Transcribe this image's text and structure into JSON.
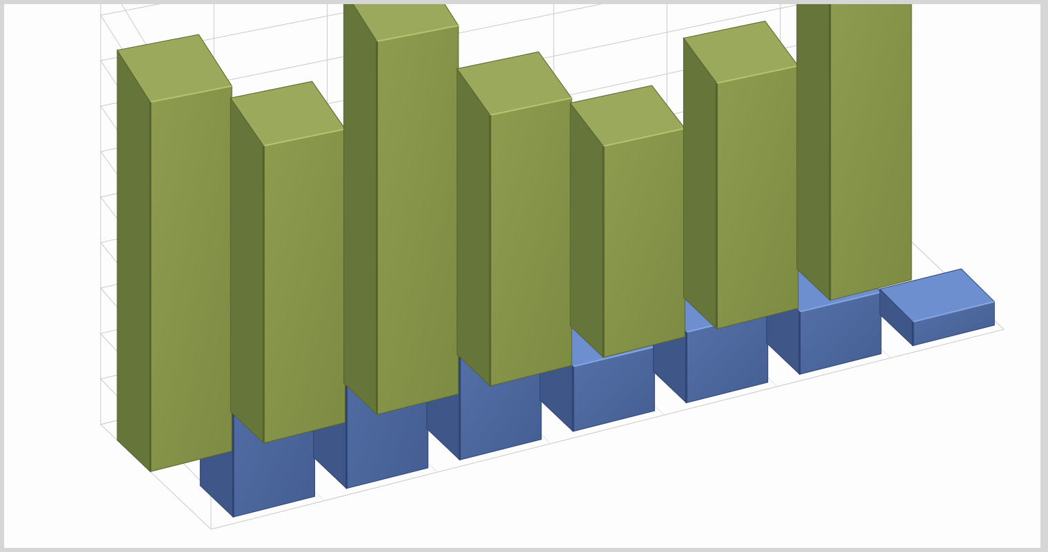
{
  "chart_data": {
    "type": "bar",
    "variant": "3d-column",
    "title": "",
    "xlabel": "",
    "ylabel": "",
    "ylim": [
      0,
      100
    ],
    "grid": true,
    "legend": "none",
    "categories": [
      "",
      "",
      "",
      "",
      "",
      "",
      ""
    ],
    "series": [
      {
        "color": "#8b9a4c",
        "values": [
          88,
          72,
          92,
          68,
          54,
          64,
          80
        ]
      },
      {
        "color": "#5b7dbb",
        "values": [
          52,
          68,
          28,
          18,
          20,
          18,
          7
        ]
      }
    ]
  }
}
